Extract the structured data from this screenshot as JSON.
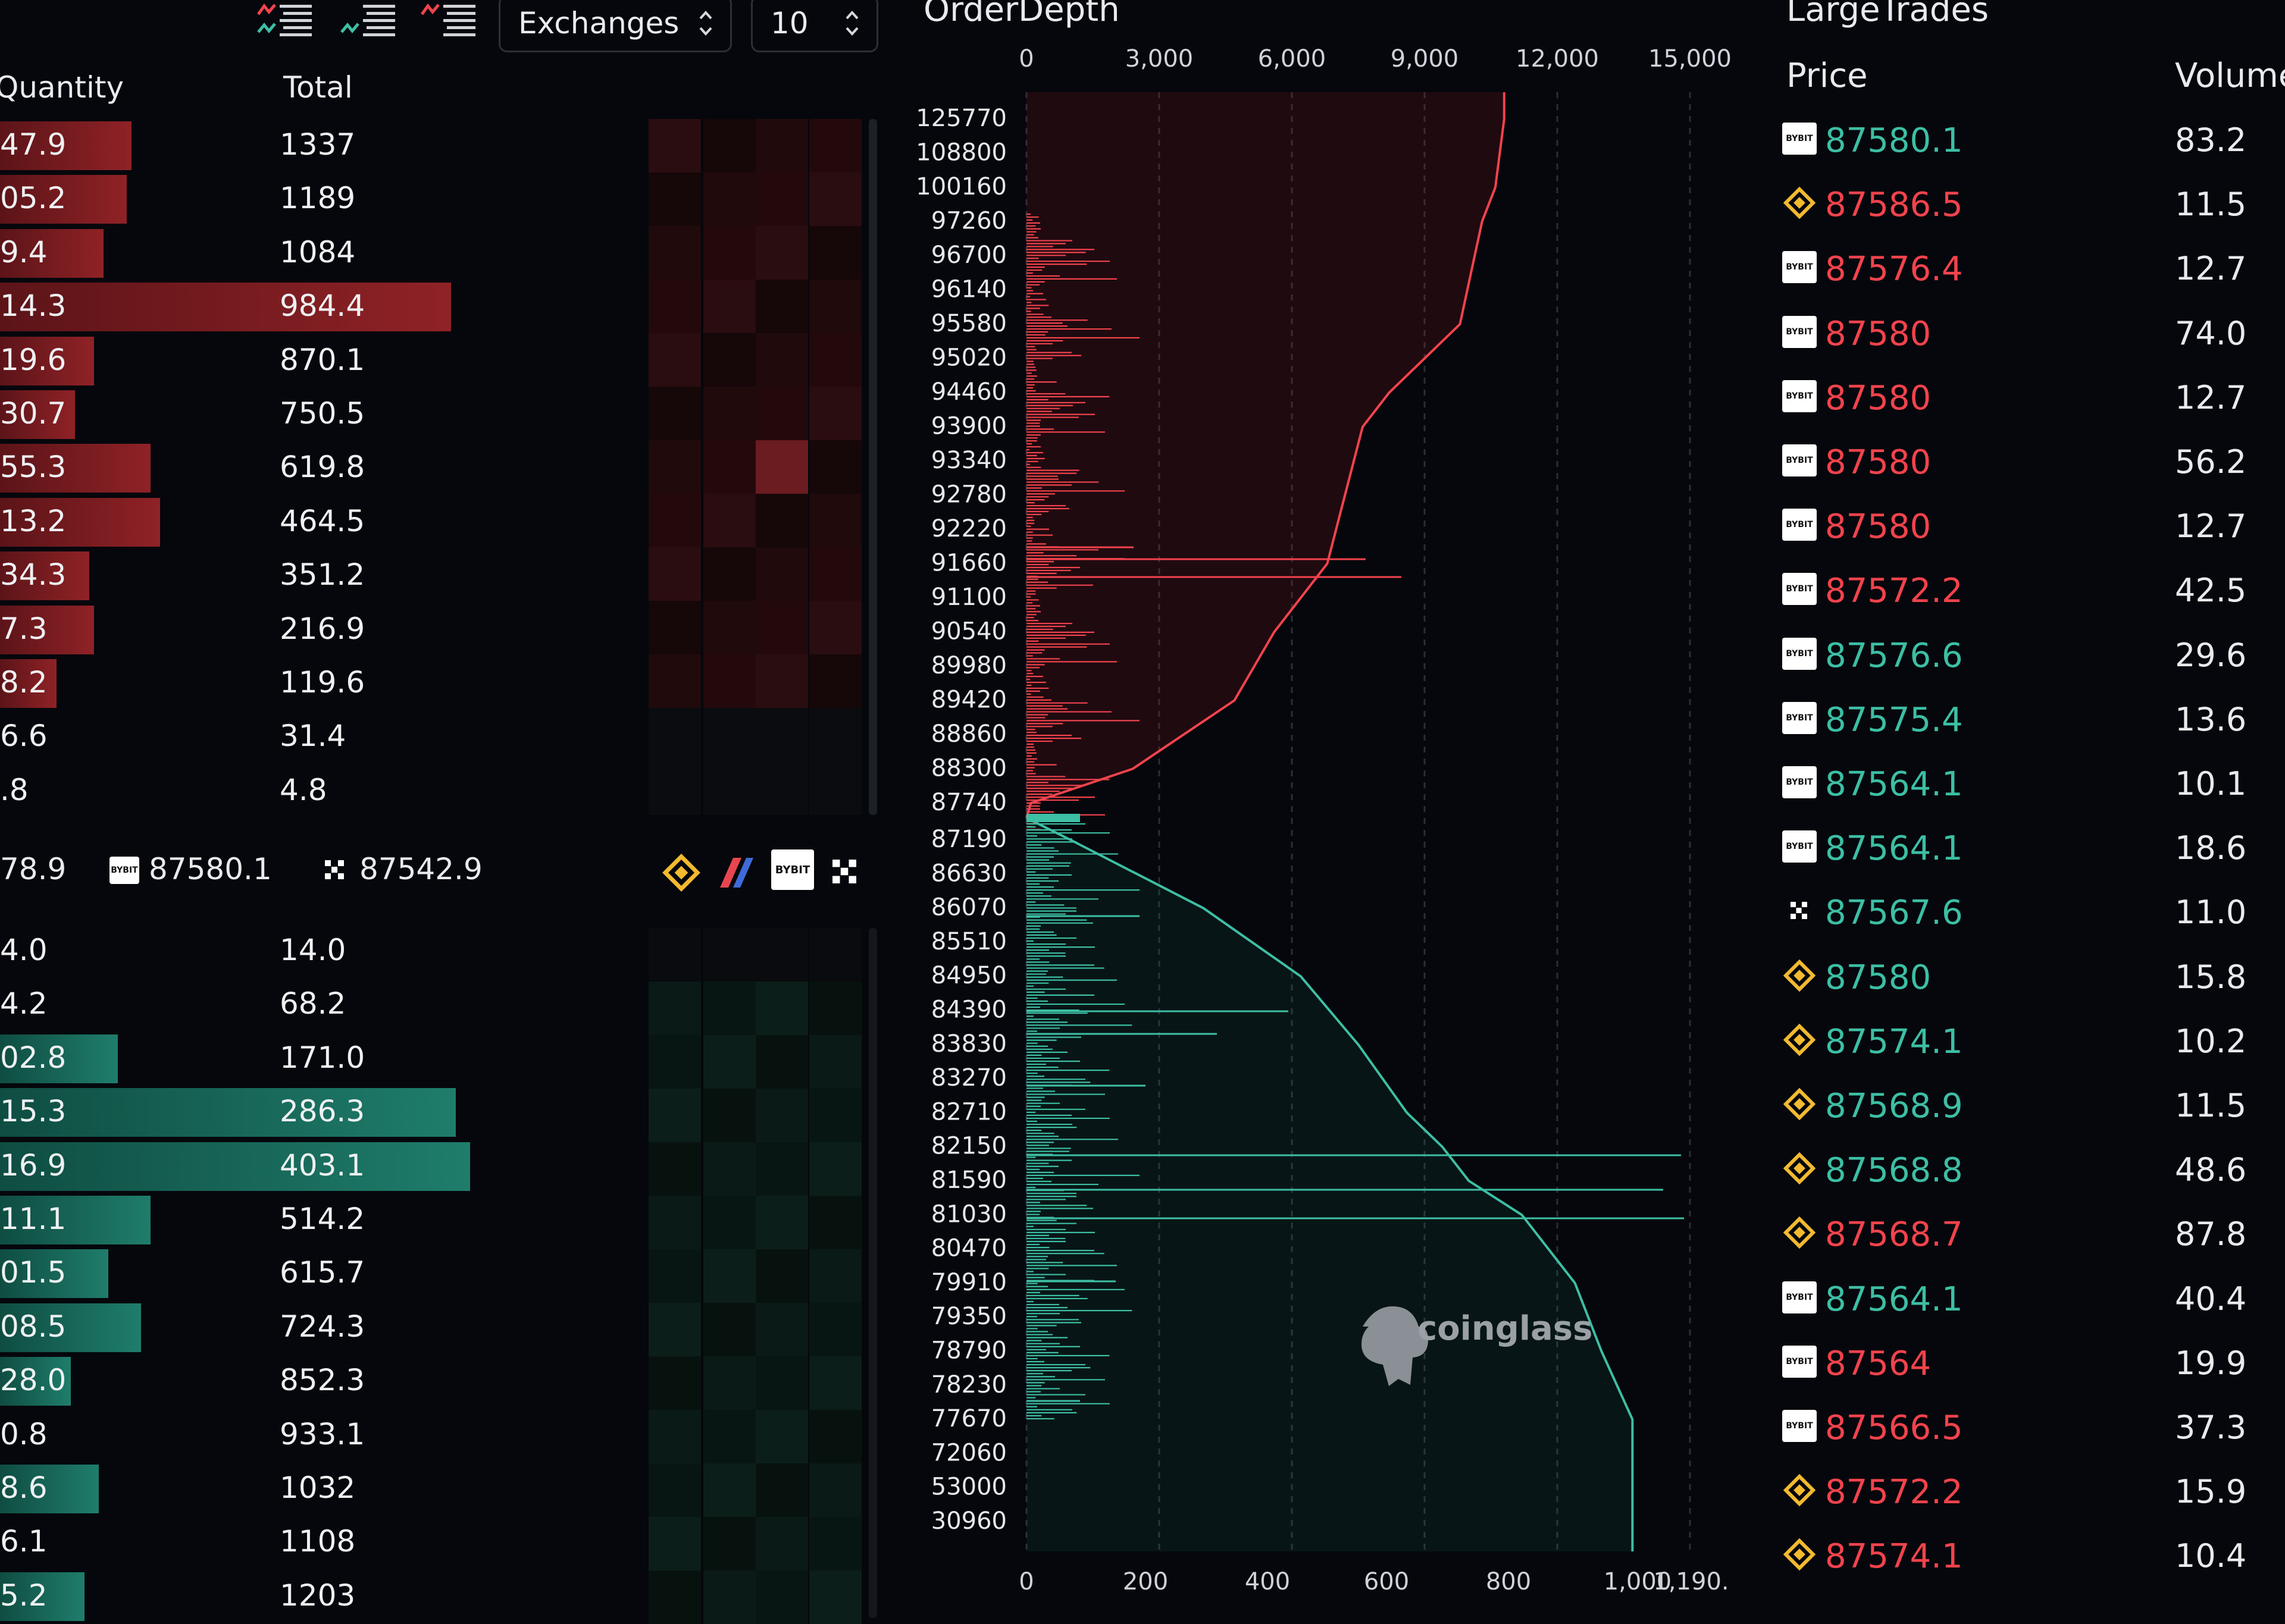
{
  "toolbar": {
    "icons": [
      "order-book-both-icon",
      "order-book-bids-icon",
      "order-book-asks-icon"
    ],
    "exchange_select": "Exchanges",
    "depth_select": "10"
  },
  "orderbook": {
    "headers": {
      "quantity": "Quantity",
      "total": "Total"
    },
    "asks": [
      {
        "qty": "47.9",
        "total": "1337",
        "bar": 0.28
      },
      {
        "qty": "05.2",
        "total": "1189",
        "bar": 0.27
      },
      {
        "qty": "9.4",
        "total": "1084",
        "bar": 0.22
      },
      {
        "qty": "14.3",
        "total": "984.4",
        "bar": 0.96
      },
      {
        "qty": "19.6",
        "total": "870.1",
        "bar": 0.2
      },
      {
        "qty": "30.7",
        "total": "750.5",
        "bar": 0.16
      },
      {
        "qty": "55.3",
        "total": "619.8",
        "bar": 0.32
      },
      {
        "qty": "13.2",
        "total": "464.5",
        "bar": 0.34
      },
      {
        "qty": "34.3",
        "total": "351.2",
        "bar": 0.19
      },
      {
        "qty": "7.3",
        "total": "216.9",
        "bar": 0.2
      },
      {
        "qty": "8.2",
        "total": "119.6",
        "bar": 0.12
      },
      {
        "qty": "6.6",
        "total": "31.4",
        "bar": 0.0
      },
      {
        "qty": ".8",
        "total": "4.8",
        "bar": 0.0
      }
    ],
    "mid": {
      "left_value": "78.9",
      "bybit_price": "87580.1",
      "okx_price": "87542.9"
    },
    "bids": [
      {
        "qty": "4.0",
        "total": "14.0",
        "bar": 0.0
      },
      {
        "qty": "4.2",
        "total": "68.2",
        "bar": 0.0
      },
      {
        "qty": "02.8",
        "total": "171.0",
        "bar": 0.25
      },
      {
        "qty": "15.3",
        "total": "286.3",
        "bar": 0.97
      },
      {
        "qty": "16.9",
        "total": "403.1",
        "bar": 1.0
      },
      {
        "qty": "11.1",
        "total": "514.2",
        "bar": 0.32
      },
      {
        "qty": "01.5",
        "total": "615.7",
        "bar": 0.23
      },
      {
        "qty": "08.5",
        "total": "724.3",
        "bar": 0.3
      },
      {
        "qty": "28.0",
        "total": "852.3",
        "bar": 0.15
      },
      {
        "qty": "0.8",
        "total": "933.1",
        "bar": 0.0
      },
      {
        "qty": "8.6",
        "total": "1032",
        "bar": 0.21
      },
      {
        "qty": "6.1",
        "total": "1108",
        "bar": 0.0
      },
      {
        "qty": "5.2",
        "total": "1203",
        "bar": 0.18
      }
    ],
    "exchange_icons": [
      "binance-icon",
      "bitflyer-icon",
      "bybit-icon",
      "okx-icon"
    ],
    "bybit_label": "BYBIT"
  },
  "order_depth": {
    "title": "OrderDepth",
    "watermark": "coinglass",
    "top_axis_ticks": [
      "0",
      "3,000",
      "6,000",
      "9,000",
      "12,000",
      "15,000"
    ],
    "bottom_axis_ticks": [
      "0",
      "200",
      "400",
      "600",
      "800",
      "1,000",
      "1,190."
    ],
    "ask_prices": [
      "125770",
      "108800",
      "100160",
      "97260",
      "96700",
      "96140",
      "95580",
      "95020",
      "94460",
      "93900",
      "93340",
      "92780",
      "92220",
      "91660",
      "91100",
      "90540",
      "89980",
      "89420",
      "88860",
      "88300",
      "87740"
    ],
    "bid_prices": [
      "87190",
      "86630",
      "86070",
      "85510",
      "84950",
      "84390",
      "83830",
      "83270",
      "82710",
      "82150",
      "81590",
      "81030",
      "80470",
      "79910",
      "79350",
      "78790",
      "78230",
      "77670",
      "72060",
      "53000",
      "30960"
    ],
    "ask_color": "#f2434c",
    "bid_color": "#3dbfa4",
    "chart_data": {
      "type": "area",
      "title": "OrderDepth",
      "x_top_range": [
        0,
        15000
      ],
      "x_bottom_range": [
        0,
        1190
      ],
      "asks_cumulative": {
        "prices": [
          "87740",
          "88300",
          "89420",
          "90540",
          "91660",
          "92220",
          "93900",
          "94460",
          "95580",
          "97260",
          "100160",
          "125770"
        ],
        "values": [
          100,
          2400,
          4700,
          5600,
          6800,
          7000,
          7600,
          8200,
          9800,
          10300,
          10600,
          10800
        ]
      },
      "bids_cumulative": {
        "prices": [
          "87190",
          "86070",
          "84950",
          "83830",
          "82710",
          "82150",
          "81590",
          "81030",
          "79910",
          "78790",
          "77670",
          "30960"
        ],
        "values": [
          1000,
          4000,
          6200,
          7500,
          8600,
          9400,
          10000,
          11200,
          12400,
          13000,
          13700,
          13700
        ]
      }
    }
  },
  "large_trades": {
    "title": "LargeTrades",
    "headers": {
      "price": "Price",
      "volume": "Volume"
    },
    "rows": [
      {
        "exchange": "bybit",
        "price": "87580.1",
        "side": "buy",
        "volume": "83.2"
      },
      {
        "exchange": "binance",
        "price": "87586.5",
        "side": "sell",
        "volume": "11.5"
      },
      {
        "exchange": "bybit",
        "price": "87576.4",
        "side": "sell",
        "volume": "12.7"
      },
      {
        "exchange": "bybit",
        "price": "87580",
        "side": "sell",
        "volume": "74.0"
      },
      {
        "exchange": "bybit",
        "price": "87580",
        "side": "sell",
        "volume": "12.7"
      },
      {
        "exchange": "bybit",
        "price": "87580",
        "side": "sell",
        "volume": "56.2"
      },
      {
        "exchange": "bybit",
        "price": "87580",
        "side": "sell",
        "volume": "12.7"
      },
      {
        "exchange": "bybit",
        "price": "87572.2",
        "side": "sell",
        "volume": "42.5"
      },
      {
        "exchange": "bybit",
        "price": "87576.6",
        "side": "buy",
        "volume": "29.6"
      },
      {
        "exchange": "bybit",
        "price": "87575.4",
        "side": "buy",
        "volume": "13.6"
      },
      {
        "exchange": "bybit",
        "price": "87564.1",
        "side": "buy",
        "volume": "10.1"
      },
      {
        "exchange": "bybit",
        "price": "87564.1",
        "side": "buy",
        "volume": "18.6"
      },
      {
        "exchange": "okx",
        "price": "87567.6",
        "side": "buy",
        "volume": "11.0"
      },
      {
        "exchange": "binance",
        "price": "87580",
        "side": "buy",
        "volume": "15.8"
      },
      {
        "exchange": "binance",
        "price": "87574.1",
        "side": "buy",
        "volume": "10.2"
      },
      {
        "exchange": "binance",
        "price": "87568.9",
        "side": "buy",
        "volume": "11.5"
      },
      {
        "exchange": "binance",
        "price": "87568.8",
        "side": "buy",
        "volume": "48.6"
      },
      {
        "exchange": "binance",
        "price": "87568.7",
        "side": "sell",
        "volume": "87.8"
      },
      {
        "exchange": "bybit",
        "price": "87564.1",
        "side": "buy",
        "volume": "40.4"
      },
      {
        "exchange": "bybit",
        "price": "87564",
        "side": "sell",
        "volume": "19.9"
      },
      {
        "exchange": "bybit",
        "price": "87566.5",
        "side": "sell",
        "volume": "37.3"
      },
      {
        "exchange": "binance",
        "price": "87572.2",
        "side": "sell",
        "volume": "15.9"
      },
      {
        "exchange": "binance",
        "price": "87574.1",
        "side": "sell",
        "volume": "10.4"
      }
    ]
  }
}
